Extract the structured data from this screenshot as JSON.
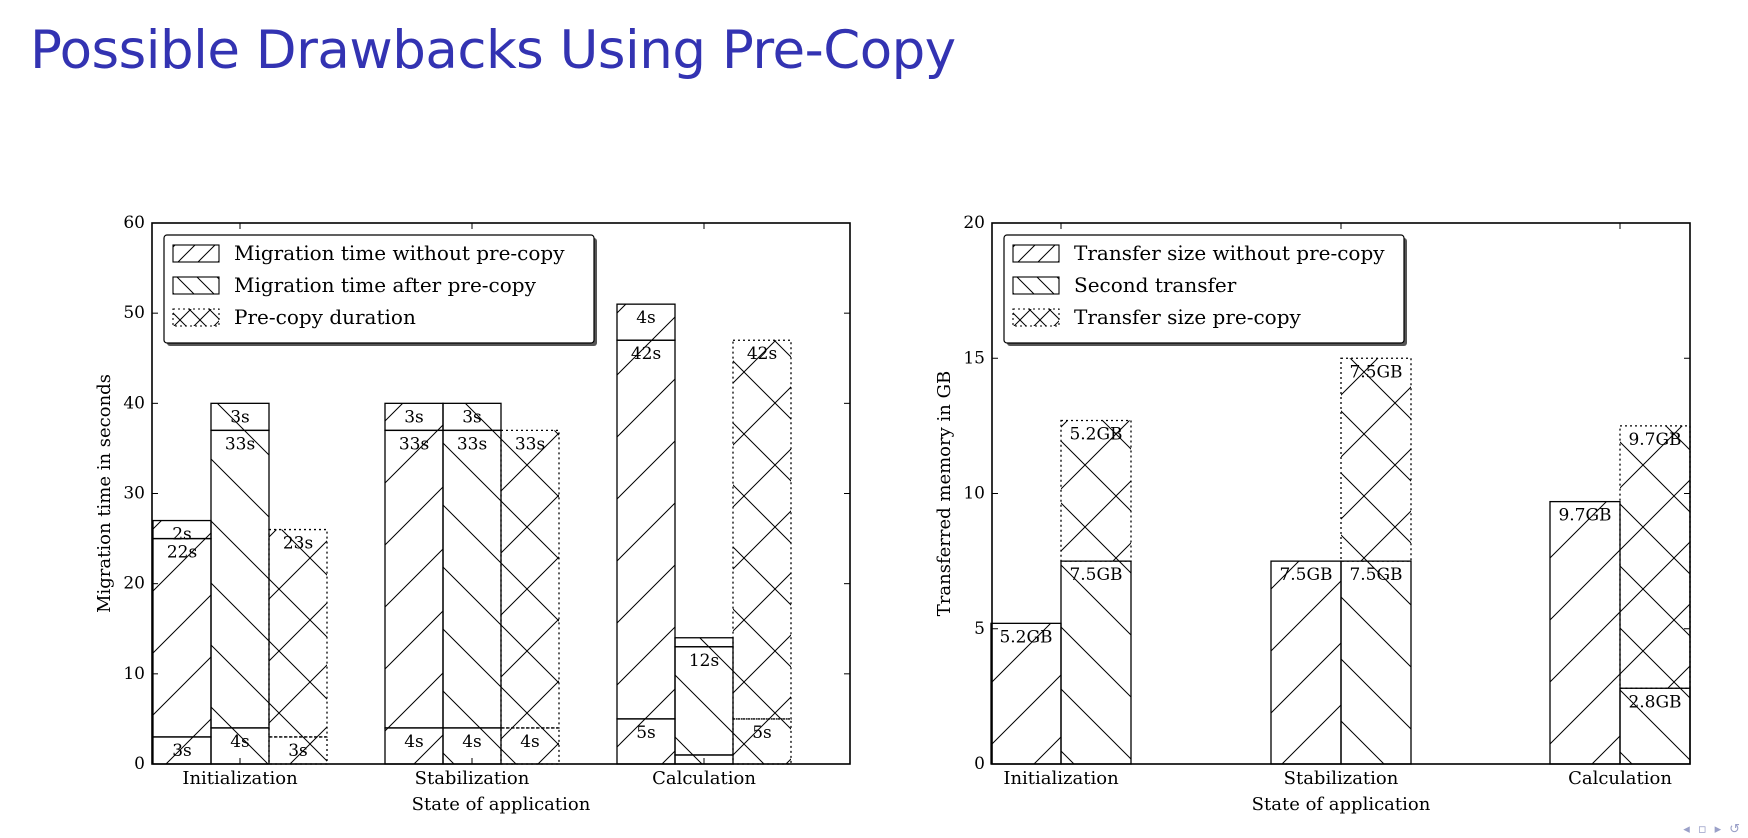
{
  "slide": {
    "title": "Possible Drawbacks Using Pre-Copy"
  },
  "chart_data": [
    {
      "type": "bar",
      "stacked": true,
      "xlabel": "State of application",
      "ylabel": "Migration time in seconds",
      "ylim": [
        0,
        60
      ],
      "yticks": [
        0,
        10,
        20,
        30,
        40,
        50,
        60
      ],
      "categories": [
        "Initialization",
        "Stabilization",
        "Calculation"
      ],
      "legend_position": "top-left",
      "grid": false,
      "series": [
        {
          "name": "Migration time without pre-copy",
          "hatch": "forward",
          "dotted": false,
          "segments": [
            [
              {
                "v": 3,
                "label": "3s"
              },
              {
                "v": 22,
                "label": "22s"
              },
              {
                "v": 2,
                "label": "2s"
              }
            ],
            [
              {
                "v": 4,
                "label": "4s"
              },
              {
                "v": 33,
                "label": "33s"
              },
              {
                "v": 3,
                "label": "3s"
              }
            ],
            [
              {
                "v": 5,
                "label": "5s"
              },
              {
                "v": 42,
                "label": "42s"
              },
              {
                "v": 4,
                "label": "4s"
              }
            ]
          ]
        },
        {
          "name": "Migration time after pre-copy",
          "hatch": "back",
          "dotted": false,
          "segments": [
            [
              {
                "v": 4,
                "label": "4s"
              },
              {
                "v": 33,
                "label": "33s"
              },
              {
                "v": 3,
                "label": "3s"
              }
            ],
            [
              {
                "v": 4,
                "label": "4s"
              },
              {
                "v": 33,
                "label": "33s"
              },
              {
                "v": 3,
                "label": "3s"
              }
            ],
            [
              {
                "v": 1,
                "label": ""
              },
              {
                "v": 12,
                "label": "12s"
              },
              {
                "v": 1,
                "label": ""
              }
            ]
          ]
        },
        {
          "name": "Pre-copy duration",
          "hatch": "cross",
          "dotted": true,
          "segments": [
            [
              {
                "v": 3,
                "label": "3s"
              },
              {
                "v": 23,
                "label": "23s"
              }
            ],
            [
              {
                "v": 4,
                "label": "4s"
              },
              {
                "v": 33,
                "label": "33s"
              }
            ],
            [
              {
                "v": 5,
                "label": "5s"
              },
              {
                "v": 42,
                "label": "42s"
              }
            ]
          ]
        }
      ]
    },
    {
      "type": "bar",
      "stacked": true,
      "xlabel": "State of application",
      "ylabel": "Transferred memory in GB",
      "ylim": [
        0,
        20
      ],
      "yticks": [
        0,
        5,
        10,
        15,
        20
      ],
      "categories": [
        "Initialization",
        "Stabilization",
        "Calculation"
      ],
      "legend_position": "top-left",
      "grid": false,
      "series": [
        {
          "name": "Transfer size without pre-copy",
          "hatch": "forward",
          "dotted": false,
          "segments": [
            [
              {
                "v": 5.2,
                "label": "5.2GB"
              }
            ],
            [
              {
                "v": 7.5,
                "label": "7.5GB"
              }
            ],
            [
              {
                "v": 9.7,
                "label": "9.7GB"
              }
            ]
          ]
        },
        {
          "name": "Second transfer",
          "hatch": "back",
          "dotted": false,
          "segments": [
            [
              {
                "v": 7.5,
                "label": "7.5GB"
              }
            ],
            [
              {
                "v": 7.5,
                "label": "7.5GB"
              }
            ],
            [
              {
                "v": 2.8,
                "label": "2.8GB"
              }
            ]
          ]
        },
        {
          "name": "Transfer size pre-copy",
          "hatch": "cross",
          "dotted": true,
          "segments": [
            [
              {
                "v": 5.2,
                "label": "5.2GB"
              }
            ],
            [
              {
                "v": 7.5,
                "label": "7.5GB"
              }
            ],
            [
              {
                "v": 9.7,
                "label": "9.7GB"
              }
            ]
          ]
        }
      ]
    }
  ]
}
